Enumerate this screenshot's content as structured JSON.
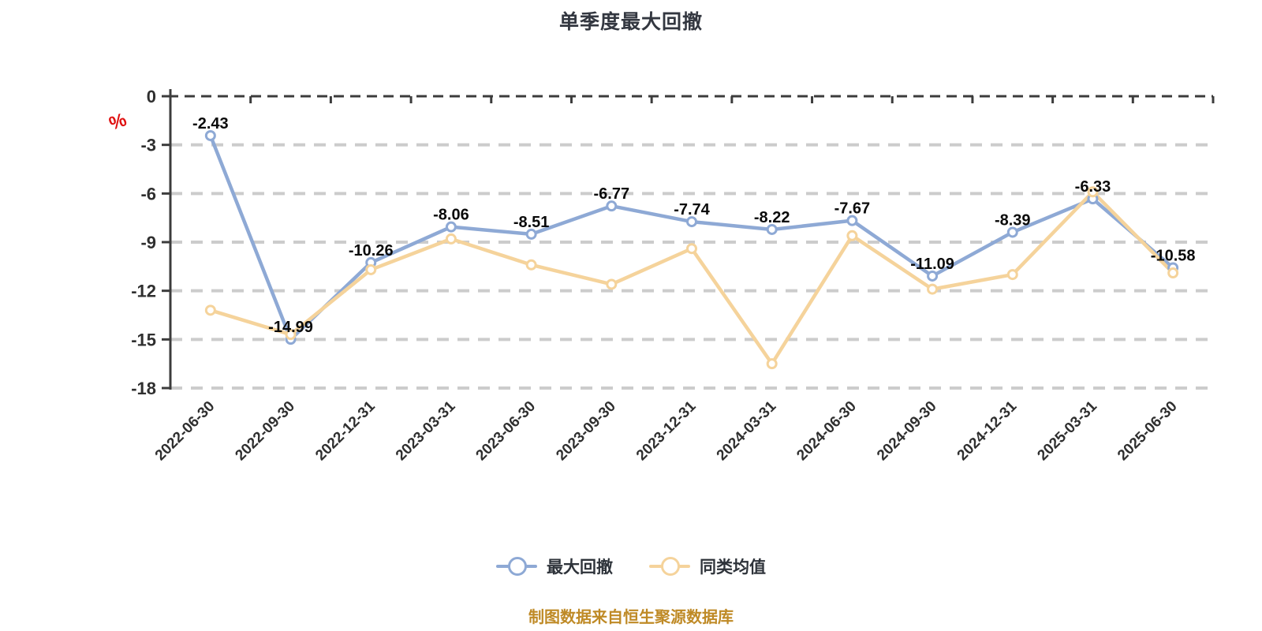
{
  "title": "单季度最大回撤",
  "y_axis_unit": "%",
  "caption": "制图数据来自恒生聚源数据库",
  "legend": [
    {
      "label": "最大回撤",
      "color": "#8EA9D5"
    },
    {
      "label": "同类均值",
      "color": "#F5D39B"
    }
  ],
  "colors": {
    "series_blue": "#8EA9D5",
    "series_yellow": "#F5D39B",
    "grid_light": "#CCCCCC",
    "axis_dark": "#3C3C3C",
    "tick_text": "#2F2F2F",
    "value_label": "#0A0A0A",
    "caption_orange": "#BF8A26",
    "unit_red": "#E01212",
    "background": "#FFFFFF"
  },
  "chart_data": {
    "type": "line",
    "title": "单季度最大回撤",
    "categories": [
      "2022-06-30",
      "2022-09-30",
      "2022-12-31",
      "2023-03-31",
      "2023-06-30",
      "2023-09-30",
      "2023-12-31",
      "2024-03-31",
      "2024-06-30",
      "2024-09-30",
      "2024-12-31",
      "2025-03-31",
      "2025-06-30"
    ],
    "series": [
      {
        "name": "最大回撤",
        "color": "#8EA9D5",
        "values": [
          -2.43,
          -14.99,
          -10.26,
          -8.06,
          -8.51,
          -6.77,
          -7.74,
          -8.22,
          -7.67,
          -11.09,
          -8.39,
          -6.33,
          -10.58
        ],
        "labels": [
          "-2.43",
          "-14.99",
          "-10.26",
          "-8.06",
          "-8.51",
          "-6.77",
          "-7.74",
          "-8.22",
          "-7.67",
          "-11.09",
          "-8.39",
          "-6.33",
          "-10.58"
        ],
        "show_labels": true
      },
      {
        "name": "同类均值",
        "color": "#F5D39B",
        "values": [
          -13.2,
          -14.7,
          -10.7,
          -8.8,
          -10.4,
          -11.6,
          -9.4,
          -16.5,
          -8.6,
          -11.9,
          -11.0,
          -5.9,
          -10.9
        ],
        "show_labels": false
      }
    ],
    "xlabel": "",
    "ylabel": "%",
    "ylim": [
      -18,
      0
    ],
    "yticks": [
      0,
      -3,
      -6,
      -9,
      -12,
      -15,
      -18
    ],
    "grid": "horizontal-dashed",
    "x_label_rotation": 45,
    "legend_position": "bottom"
  }
}
